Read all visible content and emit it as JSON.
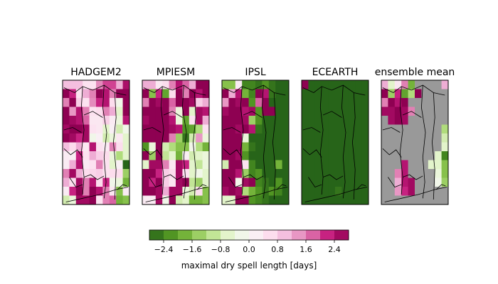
{
  "chart_data": {
    "type": "heatmap",
    "panels": [
      {
        "title": "HADGEM2",
        "grid": [
          [
            1,
            1,
            1,
            0.5,
            0.5,
            1.5,
            2,
            2,
            1.2,
            2.5
          ],
          [
            2.8,
            2.2,
            0.5,
            1.2,
            1.6,
            3,
            2.4,
            1.6,
            2.8,
            2.8
          ],
          [
            1.6,
            2.8,
            0.8,
            0.5,
            1.5,
            2.2,
            2.4,
            0.6,
            -0.2,
            2.8
          ],
          [
            2.8,
            1.4,
            2.4,
            1.6,
            0.5,
            0.6,
            1.6,
            1.2,
            -0.6,
            2.8
          ],
          [
            2.8,
            2.6,
            2.4,
            1.8,
            0.4,
            0.4,
            0.8,
            0.3,
            -0.4,
            2.4
          ],
          [
            2.6,
            2.8,
            2.8,
            2.6,
            0.5,
            0.4,
            -0.6,
            0.2,
            -0.8,
            -0.2
          ],
          [
            2.8,
            2.6,
            2.2,
            2.6,
            -0.2,
            0.2,
            -0.8,
            -0.4,
            0.4,
            -0.6
          ],
          [
            1,
            0.6,
            1.2,
            0.4,
            2.4,
            0.5,
            0.3,
            1.6,
            0.6,
            -0.6
          ],
          [
            0.3,
            0.2,
            2.2,
            0.5,
            1.2,
            0.8,
            0.6,
            -0.4,
            -1.2,
            -0.6
          ],
          [
            0.3,
            1.2,
            2.4,
            0.3,
            0.5,
            1.6,
            0.5,
            -0.6,
            0.2,
            -2.8
          ],
          [
            1.6,
            2.6,
            1.2,
            0.6,
            0.7,
            0.8,
            0.5,
            0.6,
            0.6,
            -1.4
          ],
          [
            1.2,
            0.6,
            2.6,
            1.6,
            2.4,
            0.6,
            2.2,
            -0.2,
            -0.4,
            -1.8
          ],
          [
            0.3,
            2.2,
            2.8,
            1.6,
            2.8,
            2.4,
            1.6,
            0.4,
            -1.6,
            0.3
          ],
          [
            -0.8,
            -0.4,
            2.6,
            2.6,
            2.8,
            0.5,
            1.6,
            1.8,
            -1.8,
            -1.6
          ]
        ]
      },
      {
        "title": "MPIESM",
        "grid": [
          [
            1.2,
            1.2,
            0.4,
            0.6,
            1.6,
            2.4,
            1.8,
            1.2,
            2.8,
            2.8
          ],
          [
            2.8,
            -1.6,
            2.2,
            -2,
            0.6,
            2.8,
            1.6,
            2.8,
            2.4,
            2.8
          ],
          [
            1.6,
            2.8,
            2.6,
            2.8,
            1.8,
            2.8,
            2.8,
            2.6,
            0.8,
            1.2
          ],
          [
            2.8,
            2.8,
            2.8,
            2.8,
            1.6,
            -0.4,
            2.8,
            -0.6,
            2.6,
            2.4
          ],
          [
            2.6,
            2.8,
            2.8,
            2.8,
            2.4,
            -0.4,
            -2,
            0.5,
            2.6,
            1.2
          ],
          [
            2.8,
            2.8,
            2.8,
            2.8,
            2.6,
            2.4,
            -2.2,
            -2,
            -1.2,
            0.5
          ],
          [
            2.8,
            2.8,
            2.8,
            2.8,
            1.6,
            -1.4,
            -2.6,
            -0.8,
            1.4,
            -0.4
          ],
          [
            -2.2,
            -0.4,
            2.8,
            -0.8,
            -1.2,
            -1.6,
            -1.6,
            -0.2,
            -1.2,
            -1.8
          ],
          [
            2.8,
            -1.4,
            2.8,
            -1,
            -0.6,
            -1.8,
            0.2,
            -0.8,
            -0.6,
            -0.4
          ],
          [
            -0.6,
            2.6,
            2.6,
            1.6,
            0.4,
            2.6,
            2.2,
            -0.6,
            -1,
            -0.4
          ],
          [
            2.8,
            2.8,
            2.2,
            0.8,
            0.6,
            2.6,
            0.5,
            -0.6,
            -0.2,
            -0.6
          ],
          [
            2.8,
            2.2,
            2.8,
            0.8,
            0.4,
            2.6,
            2.8,
            -1,
            -1.4,
            -0.6
          ],
          [
            2.8,
            2.8,
            2.6,
            1.2,
            2.6,
            2.6,
            -0.4,
            -0.8,
            0.6,
            -1.6
          ],
          [
            0.3,
            0.3,
            2.6,
            -0.2,
            2.8,
            -0.8,
            -0.6,
            -1.8,
            -1.8,
            -1.6
          ]
        ]
      },
      {
        "title": "IPSL",
        "grid": [
          [
            -1.6,
            -1.6,
            0.3,
            -2.4,
            -2.4,
            -2.6,
            -2.2,
            -2.6,
            -2.8,
            -2.8
          ],
          [
            2.8,
            1.2,
            2.4,
            -1.8,
            -2.4,
            2.8,
            2.4,
            -2.6,
            -2.8,
            -2.8
          ],
          [
            1.4,
            2.8,
            2.6,
            2.8,
            -2.2,
            1.8,
            2.8,
            -2.8,
            -2.8,
            -2.8
          ],
          [
            2.6,
            2.8,
            2.8,
            2.4,
            2.6,
            -2.2,
            2.8,
            2.8,
            -2.8,
            -2.8
          ],
          [
            2.8,
            2.8,
            2.8,
            2.6,
            -1.4,
            -2.2,
            -2.8,
            -2.8,
            -2.8,
            -2.8
          ],
          [
            2.8,
            2.8,
            2.6,
            2.8,
            2.4,
            -2.6,
            -2.8,
            -2.8,
            -2.8,
            -2.8
          ],
          [
            2.8,
            2.8,
            2.8,
            -0.4,
            -2.8,
            -2.8,
            -2.8,
            -2.8,
            -2.8,
            -2.8
          ],
          [
            2.8,
            2.8,
            2.8,
            -1.8,
            -2.6,
            -2.8,
            -2.8,
            -2.8,
            -2.8,
            -2.8
          ],
          [
            2.8,
            2.8,
            2.6,
            -2.2,
            -2.8,
            -2.8,
            -2.8,
            -2.8,
            -2.8,
            -2.8
          ],
          [
            -0.8,
            2.8,
            2.8,
            0.5,
            -2.4,
            -2.8,
            -2.8,
            -2.8,
            -1.8,
            -2.8
          ],
          [
            2.8,
            2.8,
            2.4,
            -1.4,
            -2.4,
            -2.2,
            -2.8,
            -2.8,
            -2.8,
            -2.8
          ],
          [
            2.8,
            2.8,
            -0.2,
            2.6,
            2.8,
            -2.4,
            -2.6,
            -2.8,
            -2.2,
            -2.8
          ],
          [
            2.6,
            2.8,
            2.6,
            -1.2,
            -1.8,
            -2.2,
            -2.6,
            -2.2,
            -2.4,
            -2.8
          ],
          [
            -0.6,
            -0.6,
            2.8,
            2.8,
            -2.2,
            -2.4,
            -2.6,
            -2.8,
            -2.8,
            -2.8
          ]
        ]
      },
      {
        "title": "ECEARTH",
        "grid": [
          [
            2.8,
            -2.8,
            -2.8,
            -2.8,
            -2.8,
            -2.8,
            -2.8,
            -2.8,
            -2.8,
            -2.8
          ],
          [
            -2.8,
            -2.8,
            -2.8,
            -2.8,
            -2.8,
            -2.8,
            -2.8,
            -2.8,
            -2.8,
            -2.8
          ],
          [
            -2.8,
            -2.8,
            -2.8,
            -2.8,
            -2.8,
            -2.8,
            -2.8,
            -2.8,
            -2.8,
            -2.8
          ],
          [
            -2.8,
            -2.8,
            -2.8,
            -2.8,
            -2.8,
            -2.8,
            -2.8,
            -2.8,
            -2.8,
            -2.8
          ],
          [
            -2.8,
            -2.8,
            -2.8,
            -2.8,
            -2.8,
            -2.8,
            -2.8,
            -2.8,
            -2.8,
            -2.8
          ],
          [
            -2.8,
            -2.8,
            -2.8,
            -2.8,
            -2.8,
            -2.8,
            -2.8,
            -2.8,
            -2.8,
            -2.8
          ],
          [
            -2.8,
            -2.8,
            -2.8,
            -2.8,
            -2.8,
            -2.8,
            -2.8,
            -2.8,
            -2.8,
            -2.8
          ],
          [
            -2.8,
            -2.8,
            -2.8,
            -2.8,
            -2.8,
            -2.8,
            -2.8,
            -2.8,
            -2.8,
            -2.8
          ],
          [
            -2.8,
            -2.8,
            -2.8,
            -2.8,
            -2.8,
            -2.8,
            -2.8,
            -2.8,
            -2.8,
            -2.8
          ],
          [
            -2.8,
            -2.8,
            -2.8,
            -2.8,
            -2.8,
            -2.8,
            -2.8,
            -2.8,
            -2.8,
            -2.8
          ],
          [
            -2.8,
            -2.8,
            -2.8,
            -2.8,
            -2.8,
            -2.8,
            -2.8,
            -2.8,
            -2.8,
            -2.8
          ],
          [
            -2.8,
            -2.8,
            -2.8,
            -2.8,
            -2.8,
            -2.8,
            -2.8,
            -2.8,
            -2.8,
            -2.8
          ],
          [
            -2.8,
            -2.8,
            -2.8,
            -2.8,
            -2.8,
            -2.6,
            -2.8,
            -2.8,
            -2.8,
            -2.8
          ],
          [
            -2.8,
            -2.8,
            -2.8,
            -2.8,
            -2.8,
            -2.8,
            -2.8,
            -2.8,
            -2.8,
            -2.8
          ]
        ]
      },
      {
        "title": "ensemble mean",
        "grid": [
          [
            1.2,
            -0.6,
            0.4,
            1.6,
            -1.8,
            "NaN",
            "NaN",
            "NaN",
            "NaN",
            1.2
          ],
          [
            2.8,
            -1.4,
            2.2,
            -2,
            -1.2,
            2.8,
            "NaN",
            "NaN",
            "NaN",
            "NaN"
          ],
          [
            1.6,
            2.8,
            2.4,
            2.8,
            "NaN",
            "NaN",
            "NaN",
            "NaN",
            "NaN",
            "NaN"
          ],
          [
            2.6,
            2.6,
            2.8,
            2.6,
            1.6,
            "NaN",
            "NaN",
            "NaN",
            "NaN",
            "NaN"
          ],
          [
            "NaN",
            2.6,
            2.8,
            2.6,
            "NaN",
            "NaN",
            "NaN",
            "NaN",
            "NaN",
            "NaN"
          ],
          [
            "NaN",
            "NaN",
            "NaN",
            "NaN",
            "NaN",
            "NaN",
            "NaN",
            "NaN",
            "NaN",
            -1.2
          ],
          [
            "NaN",
            "NaN",
            "NaN",
            "NaN",
            "NaN",
            "NaN",
            "NaN",
            "NaN",
            "NaN",
            -0.8
          ],
          [
            "NaN",
            "NaN",
            "NaN",
            "NaN",
            "NaN",
            "NaN",
            "NaN",
            "NaN",
            "NaN",
            -0.6
          ],
          [
            "NaN",
            "NaN",
            "NaN",
            "NaN",
            "NaN",
            "NaN",
            "NaN",
            "NaN",
            -0.6,
            -2.4
          ],
          [
            "NaN",
            "NaN",
            "NaN",
            2.4,
            "NaN",
            "NaN",
            "NaN",
            -0.6,
            -0.6,
            -1.6
          ],
          [
            "NaN",
            "NaN",
            1.6,
            2.4,
            "NaN",
            "NaN",
            "NaN",
            "NaN",
            -0.4,
            -1.6
          ],
          [
            "NaN",
            "NaN",
            1.2,
            2.4,
            2.6,
            "NaN",
            "NaN",
            "NaN",
            -0.2,
            -1.4
          ],
          [
            "NaN",
            "NaN",
            1.4,
            2.2,
            2.6,
            "NaN",
            "NaN",
            "NaN",
            "NaN",
            "NaN"
          ],
          [
            "NaN",
            "NaN",
            "NaN",
            "NaN",
            "NaN",
            "NaN",
            "NaN",
            "NaN",
            "NaN",
            "NaN"
          ]
        ]
      }
    ],
    "colormap": "PiYG_r",
    "masked_color": "#999999",
    "vmin": -2.8,
    "vmax": 2.8,
    "colorbar": {
      "ticks": [
        -2.4,
        -1.6,
        -0.8,
        0.0,
        0.8,
        1.6,
        2.4
      ],
      "tick_labels": [
        "−2.4",
        "−1.6",
        "−0.8",
        "0.0",
        "0.8",
        "1.6",
        "2.4"
      ],
      "label": "maximal dry spell length [days]"
    }
  }
}
